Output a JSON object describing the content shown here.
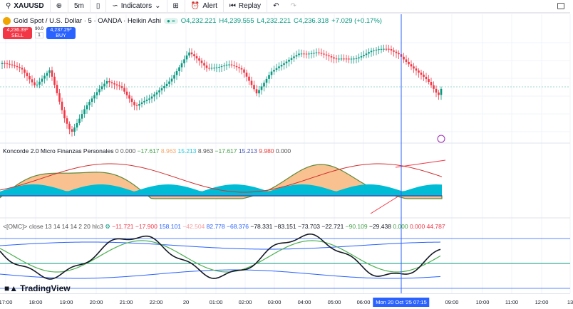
{
  "toolbar": {
    "symbol": "XAUUSD",
    "interval": "5m",
    "indicators": "Indicators",
    "alert": "Alert",
    "replay": "Replay"
  },
  "legend": {
    "title": "Gold Spot / U.S. Dollar · 5 · OANDA · Heikin Ashi",
    "o": "O4,232.221",
    "h": "H4,239.555",
    "l": "L4,232.221",
    "c": "C4,236.318",
    "chg": "+7.029 (+0.17%)"
  },
  "trade": {
    "sell_price": "4,236.39⁰",
    "sell": "SELL",
    "buy_price": "4,237.29⁰",
    "buy": "BUY",
    "spread": "90.0",
    "qty": "1"
  },
  "koncorde": {
    "name": "Koncorde 2.0 Micro Finanzas Personales",
    "v": [
      "0",
      "0.000",
      "−17.617",
      "8.963",
      "15.213",
      "8.963",
      "−17.617",
      "15.213",
      "9.980",
      "0.000"
    ]
  },
  "omc": {
    "name": "<[OMC]> close 13 14 14 14 2 20 hlc3",
    "v": [
      "−11.721",
      "−17.900",
      "158.101",
      "−42.504",
      "82.778",
      "−68.376",
      "−78.331",
      "−83.151",
      "−73.703",
      "−22.721",
      "−90.109",
      "−29.438",
      "0.000",
      "0.000",
      "44.787"
    ]
  },
  "axis": {
    "labels": [
      "17:00",
      "18:00",
      "19:00",
      "20:00",
      "21:00",
      "22:00",
      "20",
      "01:00",
      "02:00",
      "03:00",
      "04:00",
      "05:00",
      "06:00",
      "09:00",
      "10:00",
      "11:00",
      "12:00",
      "13"
    ],
    "crosshair": "Mon 20 Oct '25   07:15"
  },
  "brand": "TradingView",
  "colors": {
    "up": "#089981",
    "down": "#f23645",
    "accent": "#2962ff"
  }
}
